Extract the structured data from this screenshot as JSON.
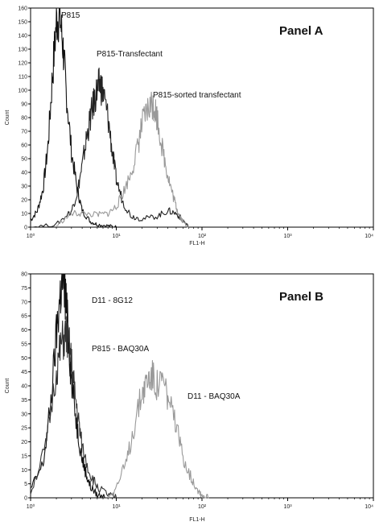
{
  "chart_data": [
    {
      "type": "line",
      "panel_label": "Panel A",
      "xlabel": "FL1-H",
      "ylabel": "Count",
      "xscale": "log",
      "xlim": [
        1,
        10000
      ],
      "ylim": [
        0,
        160
      ],
      "xticks": [
        1,
        10,
        100,
        1000,
        10000
      ],
      "xtick_labels": [
        "10⁰",
        "10¹",
        "10²",
        "10³",
        "10⁴"
      ],
      "yticks": [
        0,
        10,
        20,
        30,
        40,
        50,
        60,
        70,
        80,
        90,
        100,
        110,
        120,
        130,
        140,
        150,
        160
      ],
      "series": [
        {
          "name": "P815",
          "color": "#111111",
          "x": [
            1.0,
            1.2,
            1.4,
            1.6,
            1.8,
            2.0,
            2.2,
            2.4,
            2.6,
            3.0,
            3.5,
            4.0,
            5.0,
            6.0,
            8.0,
            10.0
          ],
          "y": [
            5,
            12,
            28,
            60,
            110,
            150,
            155,
            130,
            100,
            55,
            28,
            12,
            4,
            2,
            1,
            0
          ]
        },
        {
          "name": "P815-Transfectant",
          "color": "#222222",
          "x": [
            1.0,
            2.0,
            3.0,
            3.5,
            4.0,
            4.5,
            5.0,
            5.5,
            6.0,
            6.5,
            7.0,
            8.0,
            9.0,
            10.0,
            12.0,
            15.0,
            20.0,
            30.0,
            40.0,
            50.0,
            60.0,
            70.0
          ],
          "y": [
            0,
            2,
            12,
            25,
            45,
            65,
            80,
            92,
            100,
            105,
            98,
            80,
            55,
            35,
            18,
            8,
            6,
            8,
            12,
            10,
            5,
            0
          ]
        },
        {
          "name": "P815-sorted transfectant",
          "color": "#999999",
          "x": [
            2.0,
            3.0,
            4.0,
            6.0,
            8.0,
            10.0,
            12.0,
            15.0,
            18.0,
            20.0,
            23.0,
            26.0,
            28.0,
            30.0,
            35.0,
            40.0,
            45.0,
            50.0,
            55.0,
            60.0,
            70.0
          ],
          "y": [
            1,
            10,
            10,
            9,
            10,
            15,
            25,
            40,
            60,
            75,
            85,
            90,
            88,
            80,
            55,
            38,
            25,
            15,
            8,
            4,
            0
          ]
        }
      ]
    },
    {
      "type": "line",
      "panel_label": "Panel B",
      "xlabel": "FL1-H",
      "ylabel": "Count",
      "xscale": "log",
      "xlim": [
        1,
        10000
      ],
      "ylim": [
        0,
        80
      ],
      "xticks": [
        1,
        10,
        100,
        1000,
        10000
      ],
      "xtick_labels": [
        "10⁰",
        "10¹",
        "10²",
        "10³",
        "10⁴"
      ],
      "yticks": [
        0,
        5,
        10,
        15,
        20,
        25,
        30,
        35,
        40,
        45,
        50,
        55,
        60,
        65,
        70,
        75,
        80
      ],
      "series": [
        {
          "name": "D11 - 8G12",
          "color": "#111111",
          "x": [
            1.0,
            1.4,
            1.7,
            2.0,
            2.2,
            2.4,
            2.6,
            2.8,
            3.0,
            3.5,
            4.0,
            4.5,
            5.0,
            6.0,
            8.0
          ],
          "y": [
            3,
            12,
            32,
            58,
            72,
            78,
            70,
            55,
            42,
            25,
            14,
            8,
            4,
            1,
            0
          ]
        },
        {
          "name": "P815 - BAQ30A",
          "color": "#333333",
          "x": [
            1.0,
            1.5,
            2.0,
            2.3,
            2.6,
            2.9,
            3.2,
            3.6,
            4.0,
            5.0,
            6.0,
            8.0,
            10.0
          ],
          "y": [
            2,
            18,
            45,
            55,
            58,
            52,
            40,
            28,
            18,
            8,
            4,
            1,
            0
          ]
        },
        {
          "name": "D11 - BAQ30A",
          "color": "#999999",
          "x": [
            8.0,
            10.0,
            13.0,
            16.0,
            20.0,
            23.0,
            26.0,
            30.0,
            35.0,
            40.0,
            50.0,
            60.0,
            75.0,
            90.0,
            100.0,
            120.0
          ],
          "y": [
            0,
            4,
            12,
            25,
            38,
            42,
            44,
            40,
            42,
            36,
            25,
            15,
            7,
            3,
            1,
            0
          ]
        }
      ]
    }
  ]
}
